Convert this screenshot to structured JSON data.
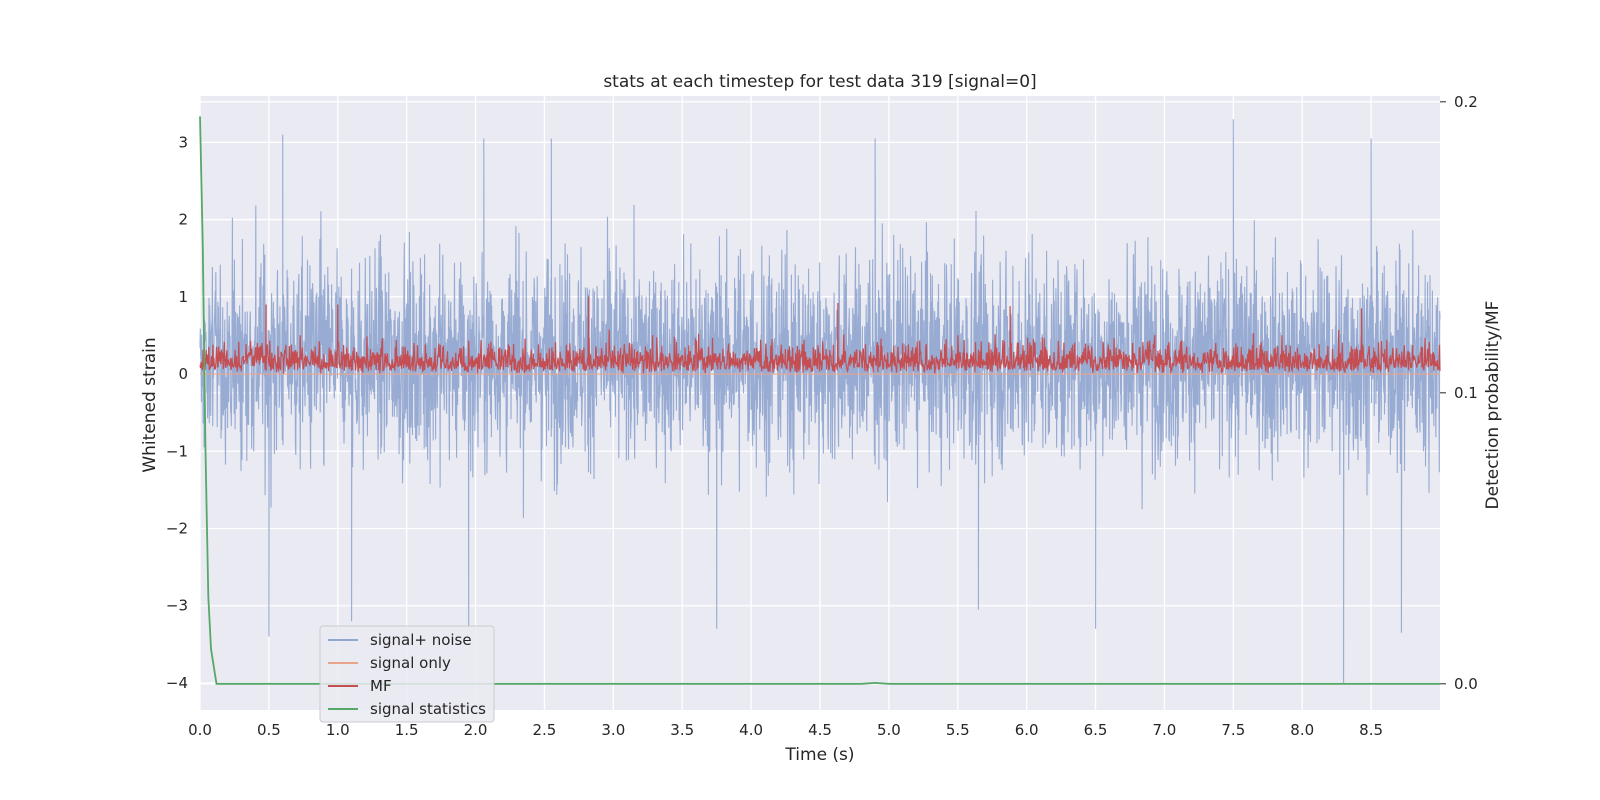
{
  "chart_data": {
    "type": "line",
    "title": "stats at each timestep for test data 319 [signal=0]",
    "xlabel": "Time (s)",
    "ylabel": "Whitened strain",
    "ylabel_right": "Detection probability/MF",
    "xlim": [
      0.0,
      9.0
    ],
    "ylim": [
      -4.35,
      3.6
    ],
    "ylim_right": [
      -0.009,
      0.202
    ],
    "x_ticks": [
      "0.0",
      "0.5",
      "1.0",
      "1.5",
      "2.0",
      "2.5",
      "3.0",
      "3.5",
      "4.0",
      "4.5",
      "5.0",
      "5.5",
      "6.0",
      "6.5",
      "7.0",
      "7.5",
      "8.0",
      "8.5"
    ],
    "y_ticks": [
      "3",
      "2",
      "1",
      "0",
      "−1",
      "−2",
      "−3",
      "−4"
    ],
    "y_tick_values": [
      3,
      2,
      1,
      0,
      -1,
      -2,
      -3,
      -4
    ],
    "y_right_ticks": [
      "0.2",
      "0.1",
      "0.0"
    ],
    "y_right_tick_values": [
      0.2,
      0.1,
      0.0
    ],
    "grid": true,
    "legend_position": "lower-left",
    "series": [
      {
        "name": "signal+ noise",
        "color": "#92a8d1",
        "axis": "left",
        "description_values": {
          "typical_range": [
            -1.8,
            2.2
          ],
          "peak_max": 3.3,
          "peak_min": -4.0,
          "notable_peaks": [
            [
              0.6,
              3.1
            ],
            [
              2.06,
              3.05
            ],
            [
              2.55,
              3.05
            ],
            [
              4.9,
              3.05
            ],
            [
              7.5,
              3.3
            ],
            [
              8.5,
              3.05
            ]
          ],
          "notable_troughs": [
            [
              0.5,
              -3.4
            ],
            [
              1.1,
              -3.2
            ],
            [
              1.95,
              -3.3
            ],
            [
              3.75,
              -3.3
            ],
            [
              5.65,
              -3.05
            ],
            [
              6.5,
              -3.3
            ],
            [
              8.3,
              -4.0
            ],
            [
              8.72,
              -3.35
            ]
          ]
        }
      },
      {
        "name": "signal only",
        "color": "#e8a58c",
        "axis": "left",
        "values_constant": 0.0
      },
      {
        "name": "MF",
        "color": "#c44e52",
        "axis": "left",
        "description_values": {
          "typical_range": [
            0.0,
            0.55
          ],
          "peak_max": 1.0,
          "notable_peaks": [
            [
              0.48,
              0.9
            ],
            [
              1.0,
              0.9
            ],
            [
              2.82,
              1.0
            ],
            [
              4.63,
              0.92
            ],
            [
              5.88,
              0.88
            ],
            [
              8.43,
              0.85
            ]
          ]
        }
      },
      {
        "name": "signal statistics",
        "color": "#55a868",
        "axis": "right",
        "x": [
          0.0,
          0.02,
          0.04,
          0.06,
          0.08,
          0.12,
          0.5,
          1.0,
          2.0,
          3.0,
          4.0,
          4.8,
          4.9,
          5.0,
          6.0,
          7.0,
          8.0,
          9.0
        ],
        "y": [
          0.195,
          0.15,
          0.08,
          0.03,
          0.012,
          0.0,
          0.0,
          0.0,
          0.0,
          0.0,
          0.0,
          0.0,
          0.0003,
          0.0,
          0.0,
          0.0,
          0.0,
          0.0
        ]
      }
    ]
  }
}
